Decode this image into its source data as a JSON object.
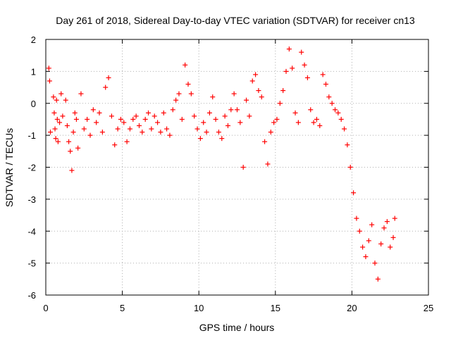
{
  "chart_data": {
    "type": "scatter",
    "title": "Day 261 of 2018, Sidereal Day-to-day VTEC variation (SDTVAR) for receiver cn13",
    "xlabel": "GPS time / hours",
    "ylabel": "SDTVAR / TECUs",
    "xlim": [
      0,
      25
    ],
    "ylim": [
      -6,
      2
    ],
    "x_ticks": [
      "0",
      "5",
      "10",
      "15",
      "20",
      "25"
    ],
    "y_ticks": [
      "2",
      "1",
      "0",
      "-1",
      "-2",
      "-3",
      "-4",
      "-5",
      "-6"
    ],
    "grid": true,
    "marker": "+",
    "marker_color": "#ff0000",
    "series": [
      {
        "name": "SDTVAR",
        "x": [
          0.2,
          0.25,
          0.3,
          0.5,
          0.55,
          0.6,
          0.65,
          0.7,
          0.75,
          0.8,
          0.9,
          1.0,
          1.1,
          1.3,
          1.4,
          1.5,
          1.6,
          1.7,
          1.8,
          1.9,
          2.0,
          2.1,
          2.3,
          2.5,
          2.7,
          2.9,
          3.1,
          3.3,
          3.5,
          3.7,
          3.9,
          4.1,
          4.3,
          4.5,
          4.7,
          4.9,
          5.1,
          5.3,
          5.5,
          5.7,
          5.9,
          6.1,
          6.3,
          6.5,
          6.7,
          6.9,
          7.1,
          7.3,
          7.5,
          7.7,
          7.9,
          8.1,
          8.3,
          8.5,
          8.7,
          8.9,
          9.1,
          9.3,
          9.5,
          9.7,
          9.9,
          10.1,
          10.3,
          10.5,
          10.7,
          10.9,
          11.1,
          11.3,
          11.5,
          11.7,
          11.9,
          12.1,
          12.3,
          12.5,
          12.7,
          12.9,
          13.1,
          13.3,
          13.5,
          13.7,
          13.9,
          14.1,
          14.3,
          14.5,
          14.7,
          14.9,
          15.1,
          15.3,
          15.5,
          15.7,
          15.9,
          16.1,
          16.3,
          16.5,
          16.7,
          16.9,
          17.1,
          17.3,
          17.5,
          17.7,
          17.9,
          18.1,
          18.3,
          18.5,
          18.7,
          18.9,
          19.1,
          19.3,
          19.5,
          19.7,
          19.9,
          20.1,
          20.3,
          20.5,
          20.7,
          20.9,
          21.1,
          21.3,
          21.5,
          21.7,
          21.9,
          22.1,
          22.3,
          22.5,
          22.7,
          22.8
        ],
        "y": [
          1.1,
          0.7,
          -0.9,
          0.2,
          -0.3,
          -0.8,
          -1.1,
          0.1,
          -0.5,
          -1.2,
          -0.6,
          0.3,
          -0.4,
          0.1,
          -0.7,
          -1.2,
          -1.5,
          -2.1,
          -0.9,
          -0.3,
          -0.5,
          -1.4,
          0.3,
          -0.8,
          -0.5,
          -1.0,
          -0.2,
          -0.6,
          -0.3,
          -0.9,
          0.5,
          0.8,
          -0.4,
          -1.3,
          -0.8,
          -0.5,
          -0.6,
          -1.2,
          -0.8,
          -0.5,
          -0.4,
          -0.7,
          -0.9,
          -0.5,
          -0.3,
          -0.8,
          -0.4,
          -0.6,
          -0.9,
          -0.3,
          -0.8,
          -1.0,
          -0.2,
          0.1,
          0.3,
          -0.5,
          1.2,
          0.6,
          0.3,
          -0.4,
          -0.8,
          -1.1,
          -0.6,
          -0.9,
          -0.3,
          0.2,
          -0.5,
          -0.9,
          -1.1,
          -0.4,
          -0.7,
          -0.2,
          0.3,
          -0.2,
          -0.6,
          -2.0,
          0.1,
          -0.4,
          0.7,
          0.9,
          0.4,
          0.2,
          -1.2,
          -1.9,
          -0.9,
          -0.6,
          -0.5,
          0.0,
          0.4,
          1.0,
          1.7,
          1.1,
          -0.3,
          -0.6,
          1.6,
          1.2,
          0.8,
          -0.2,
          -0.6,
          -0.5,
          -0.7,
          0.9,
          0.6,
          0.2,
          0.0,
          -0.2,
          -0.3,
          -0.5,
          -0.8,
          -1.3,
          -2.0,
          -2.8,
          -3.6,
          -4.0,
          -4.5,
          -4.8,
          -4.3,
          -3.8,
          -5.0,
          -5.5,
          -4.4,
          -3.9,
          -3.7,
          -4.5,
          -4.2,
          -3.6
        ]
      }
    ]
  }
}
